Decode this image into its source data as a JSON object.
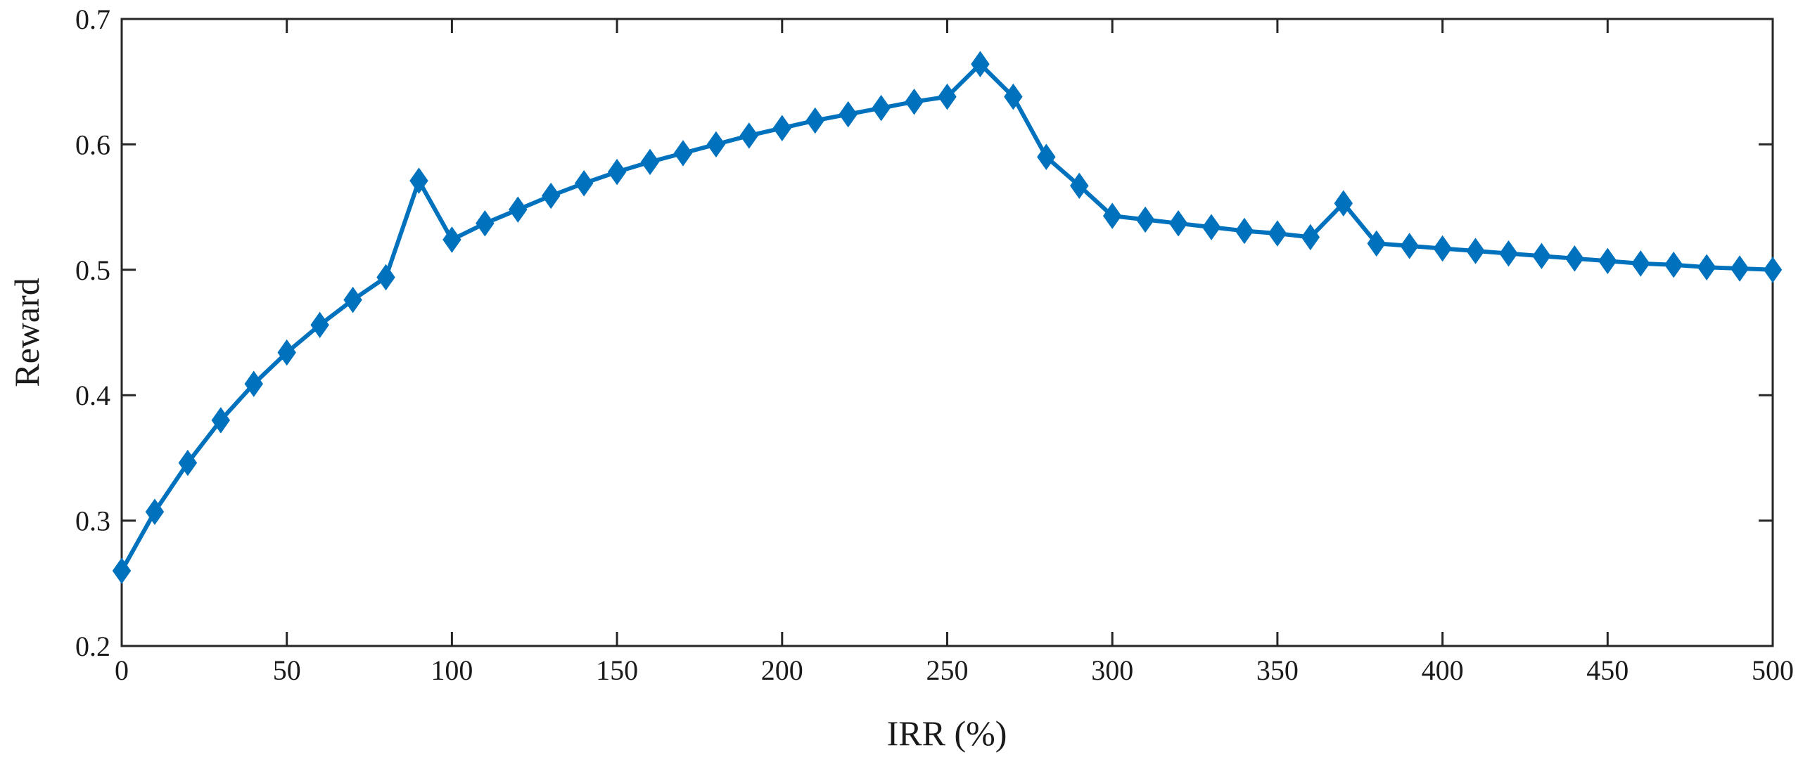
{
  "chart_data": {
    "type": "line",
    "title": "",
    "xlabel": "IRR (%)",
    "ylabel": "Reward",
    "xlim": [
      0,
      500
    ],
    "ylim": [
      0.2,
      0.7
    ],
    "xticks": [
      0,
      50,
      100,
      150,
      200,
      250,
      300,
      350,
      400,
      450,
      500
    ],
    "yticks": [
      0.2,
      0.3,
      0.4,
      0.5,
      0.6,
      0.7
    ],
    "grid": false,
    "legend": "none",
    "marker": "diamond",
    "line_color": "#0072BD",
    "series": [
      {
        "x": [
          0,
          10,
          20,
          30,
          40,
          50,
          60,
          70,
          80,
          90,
          100,
          110,
          120,
          130,
          140,
          150,
          160,
          170,
          180,
          190,
          200,
          210,
          220,
          230,
          240,
          250,
          260,
          270,
          280,
          290,
          300,
          310,
          320,
          330,
          340,
          350,
          360,
          370,
          380,
          390,
          400,
          410,
          420,
          430,
          440,
          450,
          460,
          470,
          480,
          490,
          500
        ],
        "values": [
          0.26,
          0.307,
          0.346,
          0.38,
          0.409,
          0.434,
          0.456,
          0.476,
          0.494,
          0.571,
          0.524,
          0.537,
          0.548,
          0.559,
          0.569,
          0.578,
          0.586,
          0.593,
          0.6,
          0.607,
          0.613,
          0.619,
          0.624,
          0.629,
          0.634,
          0.638,
          0.664,
          0.638,
          0.59,
          0.567,
          0.543,
          0.54,
          0.537,
          0.534,
          0.531,
          0.529,
          0.526,
          0.553,
          0.521,
          0.519,
          0.517,
          0.515,
          0.513,
          0.511,
          0.509,
          0.507,
          0.505,
          0.504,
          0.502,
          0.501,
          0.5
        ]
      }
    ]
  }
}
